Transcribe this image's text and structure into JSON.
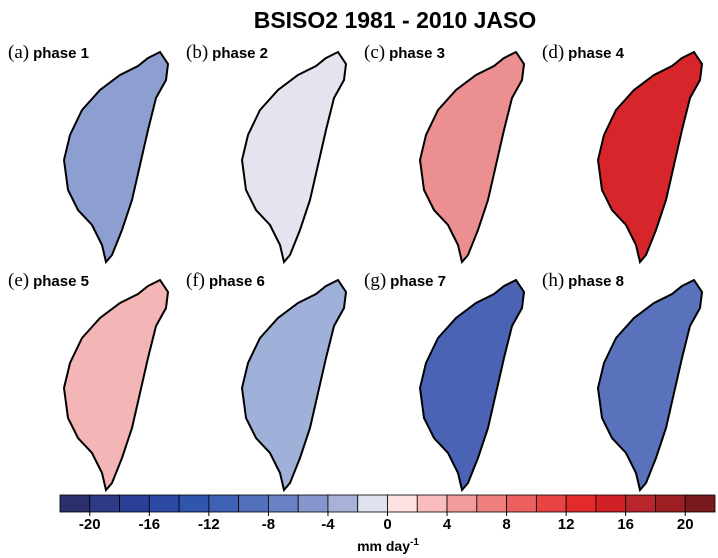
{
  "title": "BSISO2 1981 - 2010 JASO",
  "panels": [
    {
      "label": "(a)",
      "name": "phase 1"
    },
    {
      "label": "(b)",
      "name": "phase 2"
    },
    {
      "label": "(c)",
      "name": "phase 3"
    },
    {
      "label": "(d)",
      "name": "phase 4"
    },
    {
      "label": "(e)",
      "name": "phase 5"
    },
    {
      "label": "(f)",
      "name": "phase 6"
    },
    {
      "label": "(g)",
      "name": "phase 7"
    },
    {
      "label": "(h)",
      "name": "phase 8"
    }
  ],
  "colorbar": {
    "bounds": [
      -22,
      -20,
      -18,
      -16,
      -14,
      -12,
      -10,
      -8,
      -6,
      -4,
      -2,
      0,
      2,
      4,
      6,
      8,
      10,
      12,
      14,
      16,
      18,
      20,
      22
    ],
    "colors": [
      "#2b2f6b",
      "#2d3a85",
      "#2b3f97",
      "#2c4aa3",
      "#2f55ad",
      "#3f61b4",
      "#5371bb",
      "#6a82c3",
      "#8696cc",
      "#a8b1d8",
      "#dde2ee",
      "#fde0e0",
      "#f9bcbc",
      "#f29b9b",
      "#ef7e7e",
      "#ec6060",
      "#e84444",
      "#e32b2e",
      "#d12127",
      "#b8252a",
      "#9b1f23",
      "#7a1a1c"
    ],
    "ticks": [
      -20,
      -16,
      -12,
      -8,
      -4,
      0,
      4,
      8,
      12,
      16,
      20
    ],
    "unit": "mm day",
    "unit_exponent": "-1"
  }
}
